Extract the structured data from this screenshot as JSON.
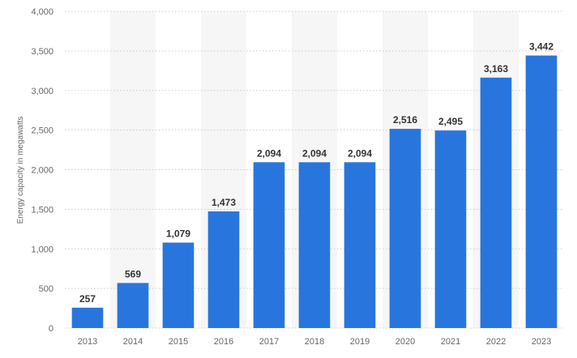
{
  "chart_data": {
    "type": "bar",
    "title": "",
    "xlabel": "",
    "ylabel": "Energy capacity in megawatts",
    "categories": [
      "2013",
      "2014",
      "2015",
      "2016",
      "2017",
      "2018",
      "2019",
      "2020",
      "2021",
      "2022",
      "2023"
    ],
    "values": [
      257,
      569,
      1079,
      1473,
      2094,
      2094,
      2094,
      2516,
      2495,
      3163,
      3442
    ],
    "value_labels": [
      "257",
      "569",
      "1,079",
      "1,473",
      "2,094",
      "2,094",
      "2,094",
      "2,516",
      "2,495",
      "3,163",
      "3,442"
    ],
    "ylim": [
      0,
      4000
    ],
    "yticks": [
      0,
      500,
      1000,
      1500,
      2000,
      2500,
      3000,
      3500,
      4000
    ],
    "ytick_labels": [
      "0",
      "500",
      "1,000",
      "1,500",
      "2,000",
      "2,500",
      "3,000",
      "3,500",
      "4,000"
    ],
    "grid": "horizontal dotted",
    "legend": "none",
    "bar_color": "#2876dd",
    "band_color": "#f6f6f6",
    "grid_color": "#cccccc",
    "text_color": "#666666",
    "label_color": "#333333"
  }
}
